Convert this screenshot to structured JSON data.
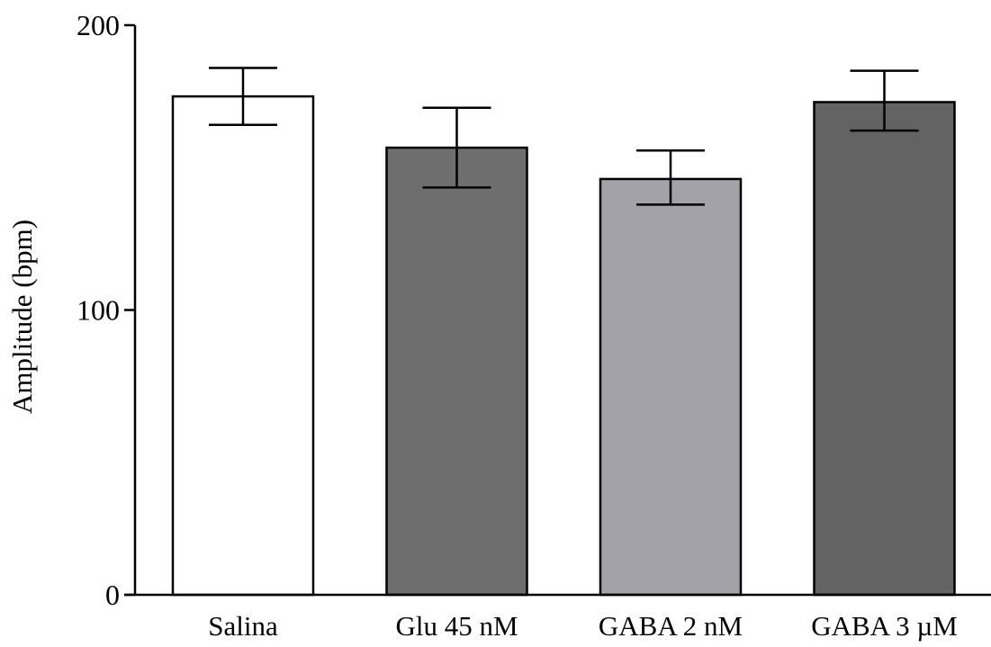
{
  "chart_data": {
    "type": "bar",
    "title": "",
    "xlabel": "",
    "ylabel": "Amplitude (bpm)",
    "ylim": [
      0,
      200
    ],
    "yticks": [
      0,
      100,
      200
    ],
    "ytick_labels": [
      "0",
      "100",
      "200"
    ],
    "grid": false,
    "categories": [
      "Salina",
      "Glu 45 nM",
      "GABA 2 nM",
      "GABA 3 µM"
    ],
    "values": [
      175,
      157,
      146,
      173
    ],
    "error_bars": [
      {
        "low": 165,
        "high": 185
      },
      {
        "low": 143,
        "high": 171
      },
      {
        "low": 137,
        "high": 156
      },
      {
        "low": 163,
        "high": 184
      }
    ],
    "colors": [
      "#ffffff",
      "#6e6e6e",
      "#a3a2a8",
      "#636363"
    ]
  }
}
